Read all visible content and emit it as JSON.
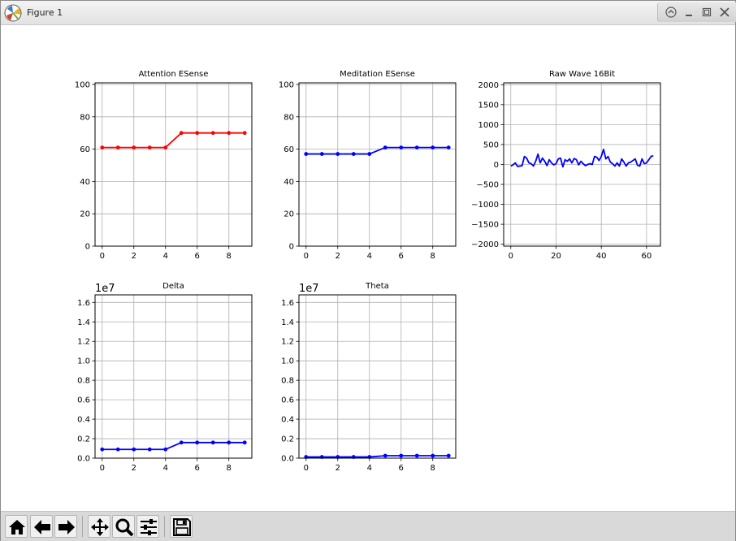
{
  "window": {
    "title": "Figure 1"
  },
  "controls": {
    "restore_icon": "restore-icon",
    "minimize_icon": "minimize-icon",
    "maximize_icon": "maximize-icon",
    "close_icon": "close-icon"
  },
  "toolbar": {
    "buttons": [
      {
        "name": "home-button",
        "icon": "home-icon"
      },
      {
        "name": "back-button",
        "icon": "arrow-left-icon"
      },
      {
        "name": "forward-button",
        "icon": "arrow-right-icon"
      },
      {
        "name": "pan-button",
        "icon": "move-icon"
      },
      {
        "name": "zoom-button",
        "icon": "magnifier-icon"
      },
      {
        "name": "configure-subplots-button",
        "icon": "sliders-icon"
      },
      {
        "name": "save-button",
        "icon": "floppy-icon"
      }
    ]
  },
  "chart_data": [
    {
      "type": "line",
      "title": "Attention ESense",
      "color": "#ff0000",
      "x": [
        0,
        1,
        2,
        3,
        4,
        5,
        6,
        7,
        8,
        9
      ],
      "values": [
        61,
        61,
        61,
        61,
        61,
        70,
        70,
        70,
        70,
        70
      ],
      "xlim": [
        -0.45,
        9.45
      ],
      "ylim": [
        0,
        101
      ],
      "xticks": [
        0,
        2,
        4,
        6,
        8
      ],
      "yticks": [
        0,
        20,
        40,
        60,
        80,
        100
      ],
      "xtick_labels": [
        "0",
        "2",
        "4",
        "6",
        "8"
      ],
      "ytick_labels": [
        "0",
        "20",
        "40",
        "60",
        "80",
        "100"
      ],
      "markers": true,
      "grid": true,
      "offset_label": ""
    },
    {
      "type": "line",
      "title": "Meditation ESense",
      "color": "#0000ff",
      "x": [
        0,
        1,
        2,
        3,
        4,
        5,
        6,
        7,
        8,
        9
      ],
      "values": [
        57,
        57,
        57,
        57,
        57,
        61,
        61,
        61,
        61,
        61
      ],
      "xlim": [
        -0.45,
        9.45
      ],
      "ylim": [
        0,
        101
      ],
      "xticks": [
        0,
        2,
        4,
        6,
        8
      ],
      "yticks": [
        0,
        20,
        40,
        60,
        80,
        100
      ],
      "xtick_labels": [
        "0",
        "2",
        "4",
        "6",
        "8"
      ],
      "ytick_labels": [
        "0",
        "20",
        "40",
        "60",
        "80",
        "100"
      ],
      "markers": true,
      "grid": true,
      "offset_label": ""
    },
    {
      "type": "line",
      "title": "Raw Wave 16Bit",
      "color": "#0000ff",
      "x": [
        0,
        1,
        2,
        3,
        4,
        5,
        6,
        7,
        8,
        9,
        10,
        11,
        12,
        13,
        14,
        15,
        16,
        17,
        18,
        19,
        20,
        21,
        22,
        23,
        24,
        25,
        26,
        27,
        28,
        29,
        30,
        31,
        32,
        33,
        34,
        35,
        36,
        37,
        38,
        39,
        40,
        41,
        42,
        43,
        44,
        45,
        46,
        47,
        48,
        49,
        50,
        51,
        52,
        53,
        54,
        55,
        56,
        57,
        58,
        59,
        60,
        61,
        62,
        63
      ],
      "values": [
        -40,
        -10,
        40,
        -50,
        -40,
        -30,
        200,
        160,
        40,
        20,
        -40,
        80,
        260,
        40,
        160,
        80,
        -30,
        120,
        40,
        -10,
        20,
        140,
        160,
        -60,
        120,
        80,
        140,
        40,
        150,
        120,
        -10,
        80,
        20,
        -30,
        0,
        20,
        0,
        200,
        180,
        100,
        200,
        380,
        140,
        200,
        60,
        20,
        -40,
        40,
        -40,
        140,
        60,
        -40,
        40,
        60,
        100,
        140,
        -20,
        -40,
        140,
        20,
        40,
        120,
        200,
        220
      ],
      "xlim": [
        -3.15,
        66.15
      ],
      "ylim": [
        -2048,
        2047
      ],
      "xticks": [
        0,
        20,
        40,
        60
      ],
      "yticks": [
        -2000,
        -1500,
        -1000,
        -500,
        0,
        500,
        1000,
        1500,
        2000
      ],
      "xtick_labels": [
        "0",
        "20",
        "40",
        "60"
      ],
      "ytick_labels": [
        "−2000",
        "−1500",
        "−1000",
        "−500",
        "0",
        "500",
        "1000",
        "1500",
        "2000"
      ],
      "markers": false,
      "grid": true,
      "offset_label": ""
    },
    {
      "type": "line",
      "title": "Delta",
      "color": "#0000ff",
      "x": [
        0,
        1,
        2,
        3,
        4,
        5,
        6,
        7,
        8,
        9
      ],
      "values": [
        0.09,
        0.09,
        0.09,
        0.09,
        0.09,
        0.16,
        0.16,
        0.16,
        0.16,
        0.16
      ],
      "xlim": [
        -0.45,
        9.45
      ],
      "ylim": [
        0,
        1.6777215
      ],
      "xticks": [
        0,
        2,
        4,
        6,
        8
      ],
      "yticks": [
        0,
        0.2,
        0.4,
        0.6,
        0.8,
        1.0,
        1.2,
        1.4,
        1.6
      ],
      "xtick_labels": [
        "0",
        "2",
        "4",
        "6",
        "8"
      ],
      "ytick_labels": [
        "0.0",
        "0.2",
        "0.4",
        "0.6",
        "0.8",
        "1.0",
        "1.2",
        "1.4",
        "1.6"
      ],
      "markers": true,
      "grid": true,
      "offset_label": "1e7"
    },
    {
      "type": "line",
      "title": "Theta",
      "color": "#0000ff",
      "x": [
        0,
        1,
        2,
        3,
        4,
        5,
        6,
        7,
        8,
        9
      ],
      "values": [
        0.012,
        0.012,
        0.012,
        0.012,
        0.012,
        0.025,
        0.025,
        0.025,
        0.025,
        0.025
      ],
      "xlim": [
        -0.45,
        9.45
      ],
      "ylim": [
        0,
        1.6777215
      ],
      "xticks": [
        0,
        2,
        4,
        6,
        8
      ],
      "yticks": [
        0,
        0.2,
        0.4,
        0.6,
        0.8,
        1.0,
        1.2,
        1.4,
        1.6
      ],
      "xtick_labels": [
        "0",
        "2",
        "4",
        "6",
        "8"
      ],
      "ytick_labels": [
        "0.0",
        "0.2",
        "0.4",
        "0.6",
        "0.8",
        "1.0",
        "1.2",
        "1.4",
        "1.6"
      ],
      "markers": true,
      "grid": true,
      "offset_label": "1e7"
    }
  ]
}
